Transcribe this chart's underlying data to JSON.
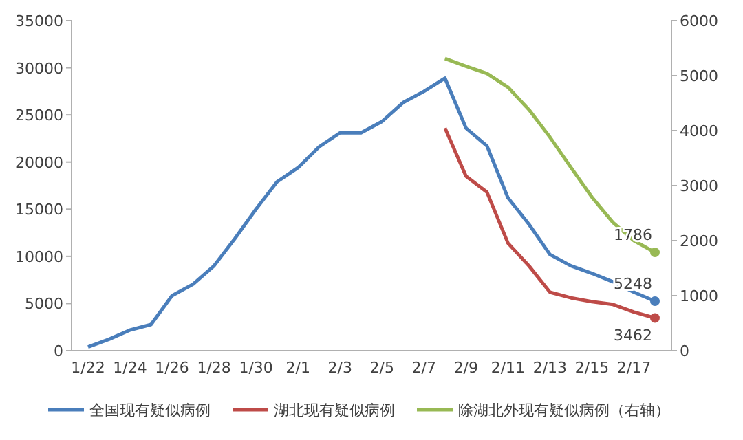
{
  "chart_data": {
    "type": "line",
    "categories": [
      "1/22",
      null,
      "1/24",
      null,
      "1/26",
      null,
      "1/28",
      null,
      "1/30",
      null,
      "2/1",
      null,
      "2/3",
      null,
      "2/5",
      null,
      "2/7",
      null,
      "2/9",
      null,
      "2/11",
      null,
      "2/13",
      null,
      "2/15",
      null,
      "2/17",
      null
    ],
    "series": [
      {
        "name": "全国现有疑似病例",
        "color": "#4a7ebb",
        "values": [
          390,
          1210,
          2190,
          2770,
          5830,
          7050,
          9000,
          11900,
          15000,
          17900,
          19400,
          21600,
          23100,
          23100,
          24300,
          26300,
          27500,
          28900,
          23600,
          21700,
          16200,
          13400,
          10200,
          9000,
          8200,
          7300,
          6200,
          5248
        ],
        "value_labels": [
          null,
          null,
          null,
          null,
          null,
          null,
          null,
          null,
          null,
          null,
          null,
          null,
          null,
          null,
          null,
          null,
          null,
          null,
          null,
          null,
          null,
          null,
          null,
          null,
          null,
          null,
          null,
          "5248"
        ]
      },
      {
        "name": "湖北现有疑似病例",
        "color": "#be4b48",
        "values": [
          null,
          null,
          null,
          null,
          null,
          null,
          null,
          null,
          null,
          null,
          null,
          null,
          null,
          null,
          null,
          null,
          null,
          23600,
          18500,
          16800,
          11400,
          9000,
          6200,
          5600,
          5200,
          4900,
          4100,
          3462
        ],
        "value_labels": [
          null,
          null,
          null,
          null,
          null,
          null,
          null,
          null,
          null,
          null,
          null,
          null,
          null,
          null,
          null,
          null,
          null,
          null,
          null,
          null,
          null,
          null,
          null,
          null,
          null,
          null,
          null,
          "3462"
        ]
      },
      {
        "name": "除湖北外现有疑似病例（右轴）",
        "color": "#98b954",
        "axis": "y2",
        "values": [
          null,
          null,
          null,
          null,
          null,
          null,
          null,
          null,
          null,
          null,
          null,
          null,
          null,
          null,
          null,
          null,
          null,
          5310,
          5170,
          5040,
          4790,
          4380,
          3880,
          3330,
          2790,
          2330,
          2000,
          1786
        ],
        "value_labels": [
          null,
          null,
          null,
          null,
          null,
          null,
          null,
          null,
          null,
          null,
          null,
          null,
          null,
          null,
          null,
          null,
          null,
          null,
          null,
          null,
          null,
          null,
          null,
          null,
          null,
          null,
          null,
          "1786"
        ]
      }
    ],
    "ylim": [
      0,
      35000
    ],
    "yticks": [
      0,
      5000,
      10000,
      15000,
      20000,
      25000,
      30000,
      35000
    ],
    "y2lim": [
      0,
      6000
    ],
    "y2ticks": [
      0,
      1000,
      2000,
      3000,
      4000,
      5000,
      6000
    ],
    "legend": "bottom",
    "grid": false,
    "line_style": "solid"
  }
}
